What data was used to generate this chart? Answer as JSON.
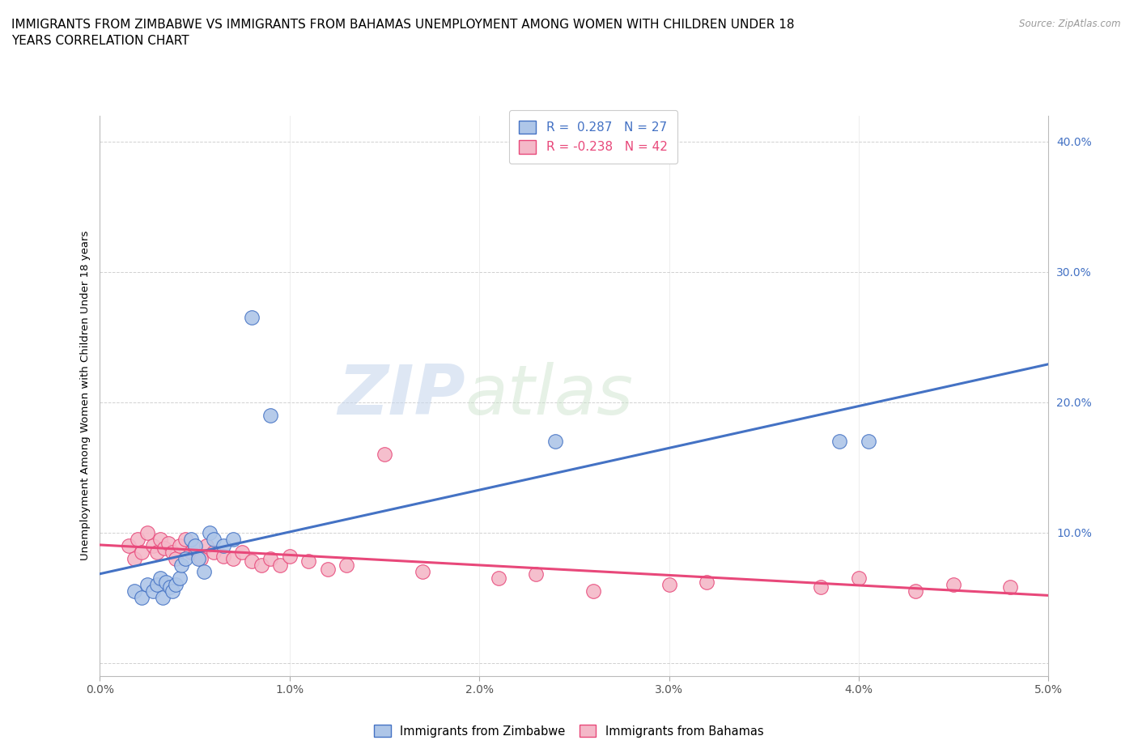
{
  "title": "IMMIGRANTS FROM ZIMBABWE VS IMMIGRANTS FROM BAHAMAS UNEMPLOYMENT AMONG WOMEN WITH CHILDREN UNDER 18\nYEARS CORRELATION CHART",
  "source": "Source: ZipAtlas.com",
  "ylabel": "Unemployment Among Women with Children Under 18 years",
  "xlim": [
    0.0,
    0.05
  ],
  "ylim": [
    -0.01,
    0.42
  ],
  "xticks": [
    0.0,
    0.01,
    0.02,
    0.03,
    0.04,
    0.05
  ],
  "yticks": [
    0.0,
    0.1,
    0.2,
    0.3,
    0.4
  ],
  "zimbabwe_color": "#aec6e8",
  "bahamas_color": "#f4b8c8",
  "zimbabwe_line_color": "#4472c4",
  "bahamas_line_color": "#e8487a",
  "legend_R_zimbabwe": "R =  0.287   N = 27",
  "legend_R_bahamas": "R = -0.238   N = 42",
  "watermark_zip": "ZIP",
  "watermark_atlas": "atlas",
  "zimbabwe_scatter_x": [
    0.0018,
    0.0022,
    0.0025,
    0.0028,
    0.003,
    0.0032,
    0.0033,
    0.0035,
    0.0037,
    0.0038,
    0.004,
    0.0042,
    0.0043,
    0.0045,
    0.0048,
    0.005,
    0.0052,
    0.0055,
    0.0058,
    0.006,
    0.0065,
    0.007,
    0.008,
    0.009,
    0.024,
    0.039,
    0.0405
  ],
  "zimbabwe_scatter_y": [
    0.055,
    0.05,
    0.06,
    0.055,
    0.06,
    0.065,
    0.05,
    0.062,
    0.058,
    0.055,
    0.06,
    0.065,
    0.075,
    0.08,
    0.095,
    0.09,
    0.08,
    0.07,
    0.1,
    0.095,
    0.09,
    0.095,
    0.265,
    0.19,
    0.17,
    0.17,
    0.17
  ],
  "bahamas_scatter_x": [
    0.0015,
    0.0018,
    0.002,
    0.0022,
    0.0025,
    0.0028,
    0.003,
    0.0032,
    0.0034,
    0.0036,
    0.0038,
    0.004,
    0.0042,
    0.0045,
    0.0048,
    0.005,
    0.0053,
    0.0056,
    0.006,
    0.0065,
    0.007,
    0.0075,
    0.008,
    0.0085,
    0.009,
    0.0095,
    0.01,
    0.011,
    0.012,
    0.013,
    0.015,
    0.017,
    0.021,
    0.023,
    0.026,
    0.03,
    0.032,
    0.038,
    0.04,
    0.043,
    0.045,
    0.048
  ],
  "bahamas_scatter_y": [
    0.09,
    0.08,
    0.095,
    0.085,
    0.1,
    0.09,
    0.085,
    0.095,
    0.088,
    0.092,
    0.085,
    0.08,
    0.09,
    0.095,
    0.085,
    0.088,
    0.08,
    0.09,
    0.085,
    0.082,
    0.08,
    0.085,
    0.078,
    0.075,
    0.08,
    0.075,
    0.082,
    0.078,
    0.072,
    0.075,
    0.16,
    0.07,
    0.065,
    0.068,
    0.055,
    0.06,
    0.062,
    0.058,
    0.065,
    0.055,
    0.06,
    0.058
  ],
  "title_fontsize": 11,
  "axis_fontsize": 9.5,
  "tick_fontsize": 10
}
